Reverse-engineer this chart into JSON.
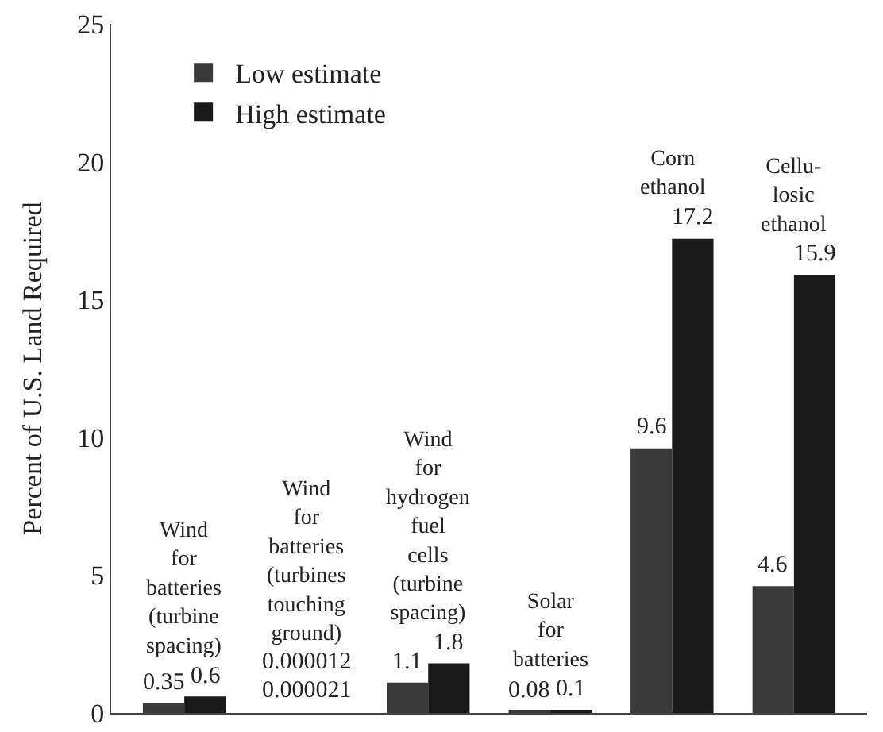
{
  "chart_data": {
    "type": "bar",
    "ylabel": "Percent of U.S. Land Required",
    "categories": [
      "Wind\nfor\nbatteries\n(turbine\nspacing)",
      "Wind\nfor\nbatteries\n(turbines\ntouching\nground)",
      "Wind\nfor\nhydrogen\nfuel\ncells\n(turbine\nspacing)",
      "Solar\nfor\nbatteries",
      "Corn\nethanol",
      "Cellu-\nlosic\nethanol"
    ],
    "series": [
      {
        "name": "Low estimate",
        "color": "#3a3a3a",
        "values": [
          0.35,
          1.2e-05,
          1.1,
          0.08,
          9.6,
          4.6
        ],
        "value_labels": [
          "0.35",
          "0.000012",
          "1.1",
          "0.08",
          "9.6",
          "4.6"
        ]
      },
      {
        "name": "High estimate",
        "color": "#1a1a1a",
        "values": [
          0.6,
          2.1e-05,
          1.8,
          0.1,
          17.2,
          15.9
        ],
        "value_labels": [
          "0.6",
          "0.000021",
          "1.8",
          "0.1",
          "17.2",
          "15.9"
        ]
      }
    ],
    "ylim": [
      0,
      25
    ],
    "yticks": [
      0,
      5,
      10,
      15,
      20,
      25
    ],
    "legend": "top left",
    "grid": false,
    "tick_labels": "y"
  }
}
